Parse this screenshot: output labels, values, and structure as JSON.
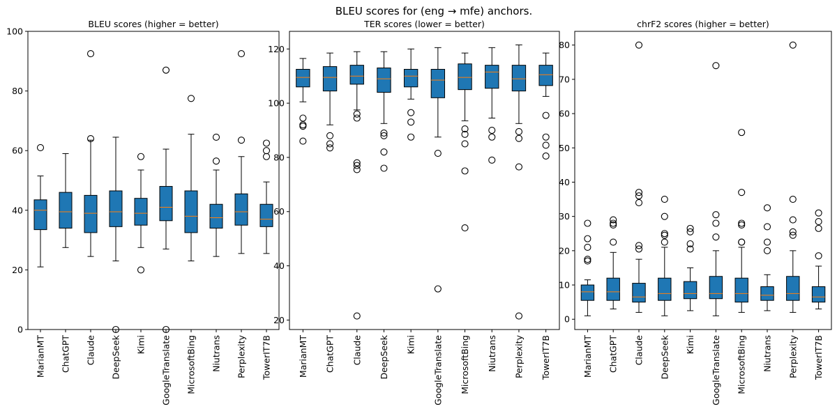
{
  "figure_title": "BLEU scores for (eng → mfe) anchors.",
  "colors": {
    "box_fill": "#1f77b4",
    "median": "#ff7f0e",
    "edge": "#000000"
  },
  "chart_data": [
    {
      "type": "box",
      "title": "BLEU scores (higher = better)",
      "categories": [
        "MarianMT",
        "ChatGPT",
        "Claude",
        "DeepSeek",
        "Kimi",
        "GoogleTranslate",
        "MicrosoftBing",
        "Niutrans",
        "Perplexity",
        "TowerIT7B"
      ],
      "ylim": [
        0,
        100
      ],
      "yticks": [
        0,
        20,
        40,
        60,
        80,
        100
      ],
      "boxes": [
        {
          "whislo": 21,
          "q1": 33.5,
          "med": 40,
          "q3": 43.5,
          "whishi": 51.5,
          "fliers": [
            61
          ]
        },
        {
          "whislo": 27.5,
          "q1": 34,
          "med": 39.5,
          "q3": 46,
          "whishi": 59,
          "fliers": []
        },
        {
          "whislo": 24.5,
          "q1": 32.5,
          "med": 39,
          "q3": 45,
          "whishi": 63.5,
          "fliers": [
            64,
            92.5
          ]
        },
        {
          "whislo": 23,
          "q1": 34.5,
          "med": 39.5,
          "q3": 46.5,
          "whishi": 64.5,
          "fliers": [
            0
          ]
        },
        {
          "whislo": 27.5,
          "q1": 35,
          "med": 39,
          "q3": 44,
          "whishi": 53.5,
          "fliers": [
            20,
            58
          ]
        },
        {
          "whislo": 27,
          "q1": 36.5,
          "med": 41,
          "q3": 48,
          "whishi": 60.5,
          "fliers": [
            0,
            87
          ]
        },
        {
          "whislo": 23,
          "q1": 32.5,
          "med": 38,
          "q3": 46.5,
          "whishi": 65.5,
          "fliers": [
            77.5
          ]
        },
        {
          "whislo": 24.5,
          "q1": 34,
          "med": 37.5,
          "q3": 42,
          "whishi": 53.5,
          "fliers": [
            56.5,
            64.5
          ]
        },
        {
          "whislo": 25.5,
          "q1": 35,
          "med": 39.5,
          "q3": 45.5,
          "whishi": 58,
          "fliers": [
            63.5,
            92.5
          ]
        },
        {
          "whislo": 25.5,
          "q1": 34.5,
          "med": 37,
          "q3": 42,
          "whishi": 49.5,
          "fliers": [
            58,
            60,
            62.5
          ]
        }
      ]
    },
    {
      "type": "box",
      "title": "TER scores (lower = better)",
      "categories": [
        "MarianMT",
        "ChatGPT",
        "Claude",
        "DeepSeek",
        "Kimi",
        "GoogleTranslate",
        "MicrosoftBing",
        "Niutrans",
        "Perplexity",
        "TowerIT7B"
      ],
      "ylim": [
        16.5,
        126.5
      ],
      "yticks": [
        20,
        40,
        60,
        80,
        100,
        120
      ],
      "boxes": [
        {
          "whislo": 100.5,
          "q1": 106,
          "med": 109.5,
          "q3": 112.5,
          "whishi": 116.5,
          "fliers": [
            86,
            91.5,
            92,
            94.5
          ]
        },
        {
          "whislo": 92,
          "q1": 104.5,
          "med": 109.5,
          "q3": 113.5,
          "whishi": 118.5,
          "fliers": [
            83.5,
            85,
            88
          ]
        },
        {
          "whislo": 97.5,
          "q1": 107,
          "med": 110,
          "q3": 114,
          "whishi": 119,
          "fliers": [
            21.5,
            75.5,
            77,
            78,
            94.5,
            96
          ]
        },
        {
          "whislo": 92.5,
          "q1": 104,
          "med": 109,
          "q3": 113,
          "whishi": 119,
          "fliers": [
            76,
            82,
            88,
            89
          ]
        },
        {
          "whislo": 101.5,
          "q1": 106,
          "med": 110,
          "q3": 112.5,
          "whishi": 120,
          "fliers": [
            87.5,
            93,
            96.5
          ]
        },
        {
          "whislo": 87.5,
          "q1": 102,
          "med": 108.5,
          "q3": 112.5,
          "whishi": 120.5,
          "fliers": [
            31.5,
            81.5
          ]
        },
        {
          "whislo": 93.5,
          "q1": 105,
          "med": 109.5,
          "q3": 114.5,
          "whishi": 118.5,
          "fliers": [
            54,
            75,
            85,
            88.5,
            90.5
          ]
        },
        {
          "whislo": 94.5,
          "q1": 105.5,
          "med": 111.5,
          "q3": 114,
          "whishi": 120.5,
          "fliers": [
            79,
            87.5,
            90
          ]
        },
        {
          "whislo": 92.5,
          "q1": 104.5,
          "med": 109,
          "q3": 114,
          "whishi": 121.5,
          "fliers": [
            21.5,
            76.5,
            87,
            89.5
          ]
        },
        {
          "whislo": 102.5,
          "q1": 106.5,
          "med": 110.5,
          "q3": 114,
          "whishi": 118.5,
          "fliers": [
            80.5,
            84.5,
            87.5,
            95.5
          ]
        }
      ]
    },
    {
      "type": "box",
      "title": "chrF2 scores (higher = better)",
      "categories": [
        "MarianMT",
        "ChatGPT",
        "Claude",
        "DeepSeek",
        "Kimi",
        "GoogleTranslate",
        "MicrosoftBing",
        "Niutrans",
        "Perplexity",
        "TowerIT7B"
      ],
      "ylim": [
        -3,
        84
      ],
      "yticks": [
        0,
        10,
        20,
        30,
        40,
        50,
        60,
        70,
        80
      ],
      "boxes": [
        {
          "whislo": 1,
          "q1": 5.5,
          "med": 8,
          "q3": 10,
          "whishi": 11.5,
          "fliers": [
            17,
            17.5,
            21,
            23.5,
            28
          ]
        },
        {
          "whislo": 3,
          "q1": 5.5,
          "med": 8,
          "q3": 12,
          "whishi": 19.5,
          "fliers": [
            22.5,
            27.5,
            28,
            29
          ]
        },
        {
          "whislo": 2,
          "q1": 5,
          "med": 6.5,
          "q3": 10.5,
          "whishi": 17.5,
          "fliers": [
            20.5,
            21.5,
            34,
            36,
            37,
            80
          ]
        },
        {
          "whislo": 1,
          "q1": 5.5,
          "med": 7.5,
          "q3": 12,
          "whishi": 21,
          "fliers": [
            22.5,
            24.5,
            25,
            30,
            35
          ]
        },
        {
          "whislo": 2.5,
          "q1": 6,
          "med": 7.5,
          "q3": 11,
          "whishi": 15,
          "fliers": [
            20.5,
            22,
            25.5,
            26.5
          ]
        },
        {
          "whislo": 1,
          "q1": 6,
          "med": 7.5,
          "q3": 12.5,
          "whishi": 20,
          "fliers": [
            24,
            28,
            30.5,
            74
          ]
        },
        {
          "whislo": 2,
          "q1": 5,
          "med": 7.5,
          "q3": 12,
          "whishi": 21,
          "fliers": [
            22.5,
            22.5,
            27.5,
            28,
            37,
            54.5
          ]
        },
        {
          "whislo": 2.5,
          "q1": 5.5,
          "med": 7,
          "q3": 9.5,
          "whishi": 13,
          "fliers": [
            20,
            22.5,
            27,
            32.5
          ]
        },
        {
          "whislo": 2,
          "q1": 5.5,
          "med": 7.5,
          "q3": 12.5,
          "whishi": 20,
          "fliers": [
            24.5,
            25.5,
            29,
            35,
            80
          ]
        },
        {
          "whislo": 3,
          "q1": 5,
          "med": 6.5,
          "q3": 9.5,
          "whishi": 15.5,
          "fliers": [
            18.5,
            26.5,
            28.5,
            31
          ]
        }
      ]
    }
  ]
}
